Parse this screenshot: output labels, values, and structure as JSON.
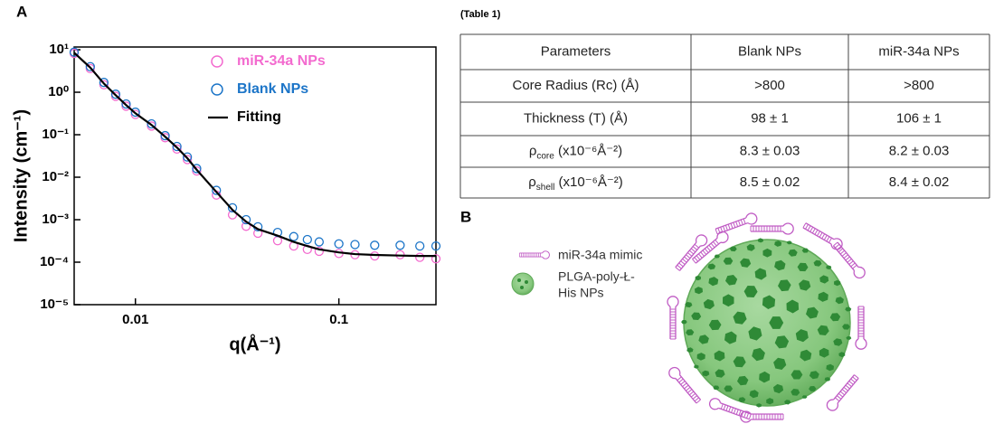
{
  "panel_a": {
    "label": "A"
  },
  "chart_data": {
    "type": "scatter",
    "x_label": "q(Å⁻¹)",
    "y_label": "Intensity (cm⁻¹)",
    "log_x": true,
    "log_y": true,
    "legend": "upper center",
    "xlim": [
      0.005,
      0.3
    ],
    "ylim": [
      1e-05,
      11.6
    ],
    "xticks": [
      0.01,
      0.1
    ],
    "yticks": [
      {
        "value": 1e-05,
        "label": "10⁻⁵"
      },
      {
        "value": 0.0001,
        "label": "10⁻⁴"
      },
      {
        "value": 0.001,
        "label": "10⁻³"
      },
      {
        "value": 0.01,
        "label": "10⁻²"
      },
      {
        "value": 0.1,
        "label": "10⁻¹"
      },
      {
        "value": 1,
        "label": "10⁰"
      },
      {
        "value": 10,
        "label": "10¹"
      }
    ],
    "x": [
      0.005,
      0.006,
      0.007,
      0.008,
      0.009,
      0.01,
      0.012,
      0.014,
      0.016,
      0.018,
      0.02,
      0.025,
      0.03,
      0.035,
      0.04,
      0.05,
      0.06,
      0.07,
      0.08,
      0.1,
      0.12,
      0.15,
      0.2,
      0.25,
      0.3
    ],
    "series": [
      {
        "name": "miR-34a NPs",
        "color": "#f36bcf",
        "marker": "circle",
        "values": [
          8.2,
          3.6,
          1.5,
          0.8,
          0.47,
          0.3,
          0.16,
          0.085,
          0.046,
          0.026,
          0.014,
          0.0038,
          0.0013,
          0.0007,
          0.00048,
          0.00032,
          0.00024,
          0.0002,
          0.00018,
          0.00016,
          0.00015,
          0.00014,
          0.00015,
          0.00013,
          0.00012
        ]
      },
      {
        "name": "Blank NPs",
        "color": "#1c75c8",
        "marker": "circle",
        "values": [
          8.8,
          4.0,
          1.7,
          0.9,
          0.53,
          0.34,
          0.18,
          0.095,
          0.053,
          0.03,
          0.016,
          0.0049,
          0.0019,
          0.001,
          0.00068,
          0.0005,
          0.0004,
          0.00034,
          0.0003,
          0.00027,
          0.00026,
          0.00025,
          0.00025,
          0.00024,
          0.00024
        ]
      },
      {
        "name": "Fitting",
        "color": "#000000",
        "marker": "line",
        "values": [
          8.5,
          3.8,
          1.6,
          0.85,
          0.5,
          0.32,
          0.17,
          0.09,
          0.05,
          0.028,
          0.015,
          0.0045,
          0.0017,
          0.0009,
          0.0006,
          0.00042,
          0.0003,
          0.00024,
          0.0002,
          0.00017,
          0.000155,
          0.000148,
          0.000143,
          0.00014,
          0.00014
        ]
      }
    ]
  },
  "table": {
    "caption": "(Table 1)",
    "header": [
      "Parameters",
      "Blank NPs",
      "miR-34a NPs"
    ],
    "rows": [
      {
        "label": "Core Radius (Rc) (Å)",
        "values": [
          ">800",
          ">800"
        ]
      },
      {
        "label": "Thickness (T) (Å)",
        "values": [
          "98 ± 1",
          "106 ± 1"
        ]
      },
      {
        "label": {
          "symbol": "ρ",
          "sub": "core",
          "unit": " (x10⁻⁶Å⁻²)"
        },
        "values": [
          "8.3 ± 0.03",
          "8.2 ± 0.03"
        ]
      },
      {
        "label": {
          "symbol": "ρ",
          "sub": "shell",
          "unit": " (x10⁻⁶Å⁻²)"
        },
        "values": [
          "8.5 ± 0.02",
          "8.4 ± 0.02"
        ]
      }
    ]
  },
  "panel_b": {
    "label": "B",
    "legend": [
      "miR-34a mimic"
    ],
    "particle_lines": [
      "PLGA-poly-Ł-",
      "His NPs"
    ]
  }
}
